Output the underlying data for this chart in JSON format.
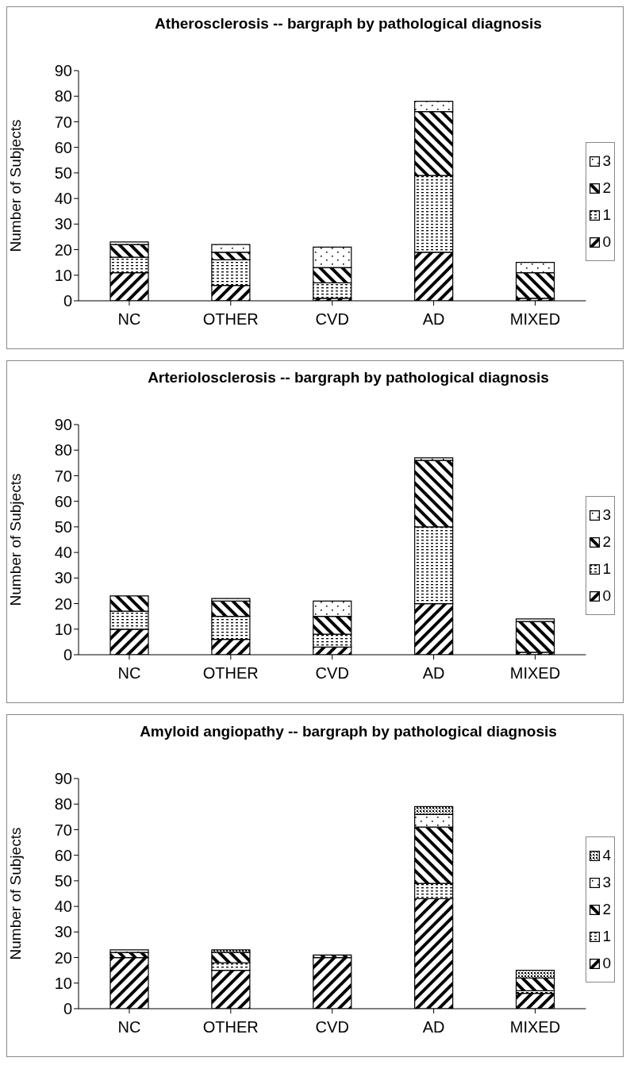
{
  "chart_data": [
    {
      "type": "bar",
      "title": "Atherosclerosis -- bargraph by pathological diagnosis",
      "ylabel": "Number of Subjects",
      "categories": [
        "NC",
        "OTHER",
        "CVD",
        "AD",
        "MIXED"
      ],
      "stacked": true,
      "ylim": [
        0,
        90
      ],
      "yticks": [
        0,
        10,
        20,
        30,
        40,
        50,
        60,
        70,
        80,
        90
      ],
      "grid": false,
      "legend": "right",
      "series": [
        {
          "name": "0",
          "color": "#000000",
          "values": [
            11,
            6,
            1,
            19,
            1
          ]
        },
        {
          "name": "1",
          "color": "#000000",
          "values": [
            6,
            10,
            6,
            30,
            0
          ]
        },
        {
          "name": "2",
          "color": "#000000",
          "values": [
            5,
            3,
            6,
            25,
            10
          ]
        },
        {
          "name": "3",
          "color": "#000000",
          "values": [
            1,
            3,
            8,
            4,
            4
          ]
        }
      ]
    },
    {
      "type": "bar",
      "title": "Arteriolosclerosis -- bargraph by pathological diagnosis",
      "ylabel": "Number of Subjects",
      "categories": [
        "NC",
        "OTHER",
        "CVD",
        "AD",
        "MIXED"
      ],
      "stacked": true,
      "ylim": [
        0,
        90
      ],
      "yticks": [
        0,
        10,
        20,
        30,
        40,
        50,
        60,
        70,
        80,
        90
      ],
      "grid": false,
      "legend": "right",
      "series": [
        {
          "name": "0",
          "color": "#000000",
          "values": [
            10,
            6,
            3,
            20,
            1
          ]
        },
        {
          "name": "1",
          "color": "#000000",
          "values": [
            7,
            9,
            5,
            30,
            0
          ]
        },
        {
          "name": "2",
          "color": "#000000",
          "values": [
            6,
            6,
            7,
            26,
            12
          ]
        },
        {
          "name": "3",
          "color": "#000000",
          "values": [
            0,
            1,
            6,
            1,
            1
          ]
        }
      ]
    },
    {
      "type": "bar",
      "title": "Amyloid angiopathy -- bargraph by pathological diagnosis",
      "ylabel": "Number of Subjects",
      "categories": [
        "NC",
        "OTHER",
        "CVD",
        "AD",
        "MIXED"
      ],
      "stacked": true,
      "ylim": [
        0,
        90
      ],
      "yticks": [
        0,
        10,
        20,
        30,
        40,
        50,
        60,
        70,
        80,
        90
      ],
      "grid": false,
      "legend": "right",
      "series": [
        {
          "name": "0",
          "color": "#000000",
          "values": [
            20,
            15,
            20,
            43,
            6
          ]
        },
        {
          "name": "1",
          "color": "#000000",
          "values": [
            0,
            3,
            0,
            6,
            1
          ]
        },
        {
          "name": "2",
          "color": "#000000",
          "values": [
            2,
            4,
            1,
            22,
            5
          ]
        },
        {
          "name": "3",
          "color": "#000000",
          "values": [
            1,
            0,
            0,
            5,
            0
          ]
        },
        {
          "name": "4",
          "color": "#000000",
          "values": [
            0,
            1,
            0,
            3,
            3
          ]
        }
      ]
    }
  ]
}
